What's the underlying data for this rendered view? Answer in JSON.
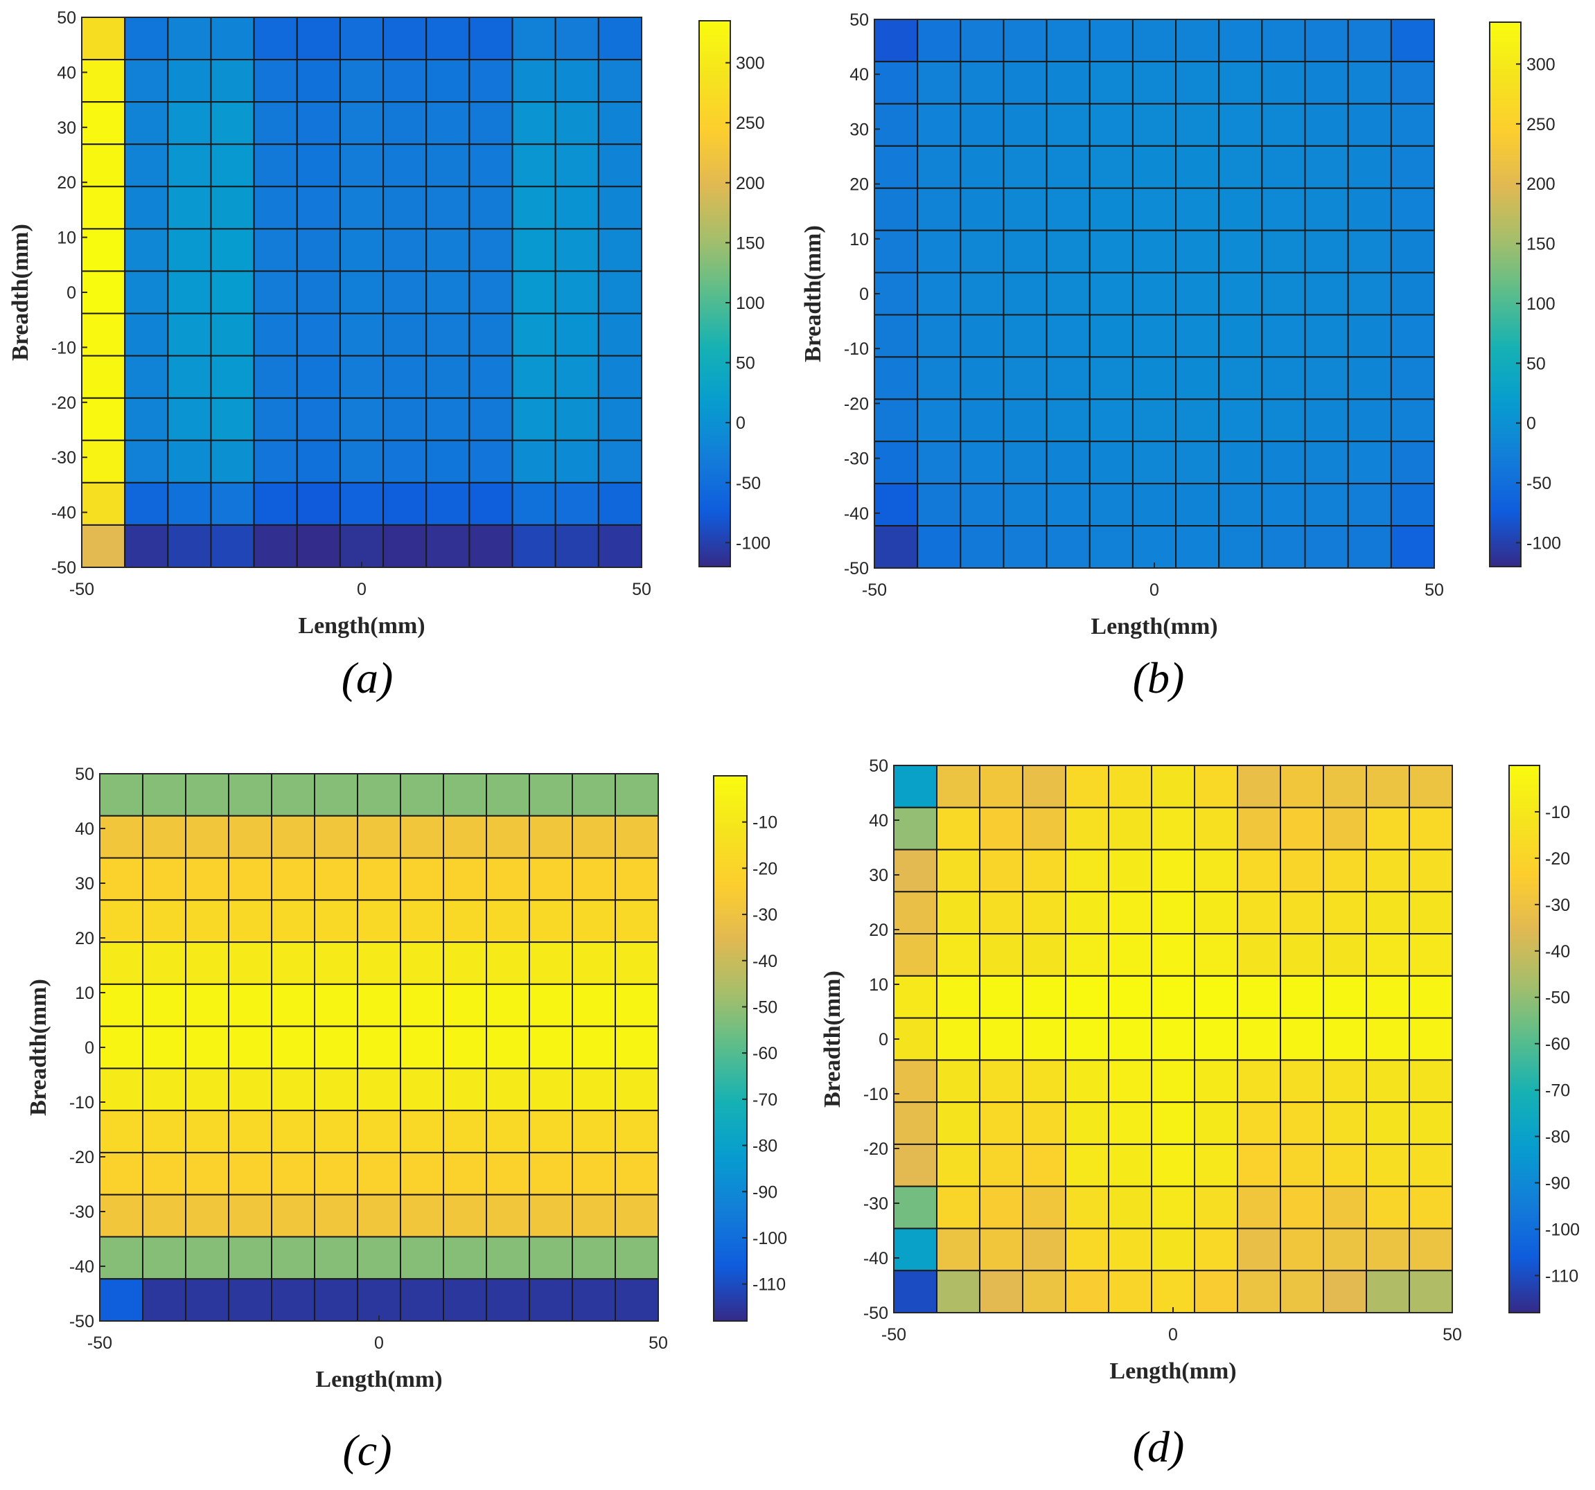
{
  "chart_data": [
    {
      "type": "heatmap",
      "caption": "(a)",
      "xlabel": "Length(mm)",
      "ylabel": "Breadth(mm)",
      "xlim": [
        -50,
        50
      ],
      "ylim": [
        -50,
        50
      ],
      "xticks": [
        -50,
        0,
        50
      ],
      "yticks": [
        50,
        40,
        30,
        20,
        10,
        0,
        -10,
        -20,
        -30,
        -40,
        -50
      ],
      "colorbar": {
        "min": -120,
        "max": 335,
        "ticks": [
          300,
          250,
          200,
          150,
          100,
          50,
          0,
          -50,
          -100
        ]
      },
      "values": [
        [
          275,
          -38,
          -20,
          -18,
          -55,
          -60,
          -50,
          -58,
          -55,
          -60,
          -25,
          -30,
          -45
        ],
        [
          320,
          -25,
          -5,
          0,
          -40,
          -45,
          -35,
          -40,
          -38,
          -40,
          -5,
          -10,
          -25
        ],
        [
          330,
          -20,
          5,
          10,
          -35,
          -40,
          -30,
          -35,
          -33,
          -35,
          5,
          0,
          -18
        ],
        [
          328,
          -20,
          8,
          12,
          -35,
          -38,
          -30,
          -33,
          -32,
          -33,
          8,
          2,
          -18
        ],
        [
          330,
          -18,
          10,
          14,
          -33,
          -36,
          -28,
          -32,
          -30,
          -32,
          10,
          3,
          -16
        ],
        [
          335,
          -15,
          12,
          16,
          -30,
          -34,
          -26,
          -30,
          -28,
          -30,
          12,
          5,
          -14
        ],
        [
          335,
          -15,
          12,
          16,
          -30,
          -34,
          -26,
          -30,
          -28,
          -30,
          12,
          5,
          -14
        ],
        [
          330,
          -18,
          10,
          14,
          -33,
          -36,
          -28,
          -32,
          -30,
          -32,
          10,
          3,
          -16
        ],
        [
          328,
          -20,
          8,
          12,
          -35,
          -38,
          -30,
          -33,
          -32,
          -33,
          8,
          2,
          -18
        ],
        [
          330,
          -20,
          5,
          10,
          -35,
          -40,
          -30,
          -35,
          -33,
          -35,
          5,
          0,
          -18
        ],
        [
          320,
          -25,
          -5,
          0,
          -40,
          -45,
          -35,
          -40,
          -38,
          -40,
          -5,
          -10,
          -25
        ],
        [
          280,
          -60,
          -45,
          -40,
          -70,
          -75,
          -65,
          -70,
          -68,
          -70,
          -45,
          -50,
          -60
        ],
        [
          200,
          -110,
          -100,
          -95,
          -115,
          -118,
          -112,
          -116,
          -114,
          -115,
          -95,
          -100,
          -108
        ]
      ]
    },
    {
      "type": "heatmap",
      "caption": "(b)",
      "xlabel": "Length(mm)",
      "ylabel": "Breadth(mm)",
      "xlim": [
        -50,
        50
      ],
      "ylim": [
        -50,
        50
      ],
      "xticks": [
        -50,
        0,
        50
      ],
      "yticks": [
        50,
        40,
        30,
        20,
        10,
        0,
        -10,
        -20,
        -30,
        -40,
        -50
      ],
      "colorbar": {
        "min": -120,
        "max": 335,
        "ticks": [
          300,
          250,
          200,
          150,
          100,
          50,
          0,
          -50,
          -100
        ]
      },
      "values": [
        [
          -80,
          -40,
          -30,
          -28,
          -25,
          -22,
          -20,
          -20,
          -22,
          -25,
          -28,
          -30,
          -55
        ],
        [
          -40,
          -25,
          -20,
          -18,
          -16,
          -14,
          -13,
          -13,
          -14,
          -16,
          -18,
          -20,
          -30
        ],
        [
          -35,
          -22,
          -18,
          -16,
          -14,
          -12,
          -11,
          -11,
          -12,
          -14,
          -16,
          -18,
          -25
        ],
        [
          -33,
          -20,
          -17,
          -15,
          -13,
          -11,
          -10,
          -10,
          -11,
          -13,
          -15,
          -17,
          -23
        ],
        [
          -32,
          -20,
          -16,
          -14,
          -12,
          -10,
          -9,
          -9,
          -10,
          -12,
          -14,
          -16,
          -22
        ],
        [
          -31,
          -19,
          -15,
          -13,
          -11,
          -9,
          -8,
          -8,
          -9,
          -11,
          -13,
          -15,
          -21
        ],
        [
          -31,
          -19,
          -15,
          -13,
          -11,
          -9,
          -8,
          -8,
          -9,
          -11,
          -13,
          -15,
          -21
        ],
        [
          -32,
          -20,
          -16,
          -14,
          -12,
          -10,
          -9,
          -9,
          -10,
          -12,
          -14,
          -16,
          -22
        ],
        [
          -33,
          -20,
          -17,
          -15,
          -13,
          -11,
          -10,
          -10,
          -11,
          -13,
          -15,
          -17,
          -23
        ],
        [
          -35,
          -22,
          -18,
          -16,
          -14,
          -12,
          -11,
          -11,
          -12,
          -14,
          -16,
          -18,
          -25
        ],
        [
          -45,
          -28,
          -22,
          -20,
          -18,
          -16,
          -15,
          -15,
          -16,
          -18,
          -20,
          -22,
          -35
        ],
        [
          -70,
          -35,
          -28,
          -25,
          -22,
          -20,
          -18,
          -18,
          -20,
          -22,
          -25,
          -28,
          -45
        ],
        [
          -100,
          -45,
          -35,
          -30,
          -28,
          -25,
          -22,
          -22,
          -25,
          -28,
          -30,
          -35,
          -65
        ]
      ]
    },
    {
      "type": "heatmap",
      "caption": "(c)",
      "xlabel": "Length(mm)",
      "ylabel": "Breadth(mm)",
      "xlim": [
        -50,
        50
      ],
      "ylim": [
        -50,
        50
      ],
      "xticks": [
        -50,
        0,
        50
      ],
      "yticks": [
        50,
        40,
        30,
        20,
        10,
        0,
        -10,
        -20,
        -30,
        -40,
        -50
      ],
      "colorbar": {
        "min": -118,
        "max": 0,
        "ticks": [
          -10,
          -20,
          -30,
          -40,
          -50,
          -60,
          -70,
          -80,
          -90,
          -100,
          -110
        ]
      },
      "values": [
        [
          -52,
          -52,
          -52,
          -52,
          -52,
          -52,
          -52,
          -52,
          -52,
          -52,
          -52,
          -52,
          -52
        ],
        [
          -28,
          -28,
          -28,
          -28,
          -28,
          -28,
          -28,
          -28,
          -28,
          -28,
          -28,
          -28,
          -28
        ],
        [
          -22,
          -22,
          -22,
          -22,
          -22,
          -22,
          -22,
          -22,
          -22,
          -22,
          -22,
          -22,
          -22
        ],
        [
          -18,
          -18,
          -18,
          -18,
          -18,
          -18,
          -18,
          -18,
          -18,
          -18,
          -18,
          -18,
          -18
        ],
        [
          -8,
          -8,
          -8,
          -8,
          -8,
          -8,
          -8,
          -8,
          -8,
          -8,
          -8,
          -8,
          -8
        ],
        [
          -3,
          -3,
          -3,
          -3,
          -3,
          -3,
          -3,
          -3,
          -3,
          -3,
          -3,
          -3,
          -3
        ],
        [
          -3,
          -3,
          -3,
          -3,
          -3,
          -3,
          -3,
          -3,
          -3,
          -3,
          -3,
          -3,
          -3
        ],
        [
          -8,
          -8,
          -8,
          -8,
          -8,
          -8,
          -8,
          -8,
          -8,
          -8,
          -8,
          -8,
          -8
        ],
        [
          -18,
          -18,
          -18,
          -18,
          -18,
          -18,
          -18,
          -18,
          -18,
          -18,
          -18,
          -18,
          -18
        ],
        [
          -22,
          -22,
          -22,
          -22,
          -22,
          -22,
          -22,
          -22,
          -22,
          -22,
          -22,
          -22,
          -22
        ],
        [
          -28,
          -28,
          -28,
          -28,
          -28,
          -28,
          -28,
          -28,
          -28,
          -28,
          -28,
          -28,
          -28
        ],
        [
          -52,
          -52,
          -52,
          -52,
          -52,
          -52,
          -52,
          -52,
          -52,
          -52,
          -52,
          -52,
          -52
        ],
        [
          -105,
          -115,
          -115,
          -115,
          -115,
          -115,
          -115,
          -115,
          -115,
          -115,
          -115,
          -115,
          -115
        ]
      ]
    },
    {
      "type": "heatmap",
      "caption": "(d)",
      "xlabel": "Length(mm)",
      "ylabel": "Breadth(mm)",
      "xlim": [
        -50,
        50
      ],
      "ylim": [
        -50,
        50
      ],
      "xticks": [
        -50,
        0,
        50
      ],
      "yticks": [
        50,
        40,
        30,
        20,
        10,
        0,
        -10,
        -20,
        -30,
        -40,
        -50
      ],
      "colorbar": {
        "min": -118,
        "max": 0,
        "ticks": [
          -10,
          -20,
          -30,
          -40,
          -50,
          -60,
          -70,
          -80,
          -90,
          -100,
          -110
        ]
      },
      "values": [
        [
          -80,
          -30,
          -28,
          -32,
          -18,
          -15,
          -12,
          -18,
          -32,
          -28,
          -30,
          -30,
          -30
        ],
        [
          -50,
          -18,
          -25,
          -28,
          -14,
          -12,
          -10,
          -14,
          -28,
          -25,
          -28,
          -18,
          -18
        ],
        [
          -35,
          -15,
          -20,
          -18,
          -10,
          -8,
          -6,
          -10,
          -18,
          -20,
          -18,
          -15,
          -15
        ],
        [
          -32,
          -12,
          -15,
          -14,
          -8,
          -6,
          -5,
          -8,
          -14,
          -15,
          -14,
          -12,
          -12
        ],
        [
          -30,
          -10,
          -12,
          -12,
          -7,
          -5,
          -4,
          -7,
          -12,
          -12,
          -12,
          -10,
          -10
        ],
        [
          -10,
          -3,
          -2,
          -2,
          -1,
          -1,
          -1,
          -1,
          -2,
          -2,
          -2,
          -3,
          -3
        ],
        [
          -12,
          -4,
          -3,
          -3,
          -2,
          -2,
          -2,
          -2,
          -3,
          -3,
          -3,
          -4,
          -4
        ],
        [
          -32,
          -12,
          -15,
          -14,
          -8,
          -6,
          -5,
          -8,
          -14,
          -15,
          -14,
          -12,
          -12
        ],
        [
          -33,
          -12,
          -18,
          -18,
          -9,
          -7,
          -5,
          -9,
          -18,
          -18,
          -15,
          -12,
          -12
        ],
        [
          -35,
          -15,
          -20,
          -22,
          -10,
          -8,
          -6,
          -10,
          -22,
          -20,
          -18,
          -15,
          -15
        ],
        [
          -55,
          -20,
          -25,
          -28,
          -15,
          -12,
          -10,
          -15,
          -28,
          -25,
          -28,
          -20,
          -20
        ],
        [
          -80,
          -30,
          -28,
          -32,
          -18,
          -15,
          -12,
          -18,
          -32,
          -28,
          -30,
          -30,
          -30
        ],
        [
          -110,
          -45,
          -35,
          -30,
          -25,
          -20,
          -18,
          -25,
          -30,
          -30,
          -35,
          -45,
          -45
        ]
      ]
    }
  ]
}
